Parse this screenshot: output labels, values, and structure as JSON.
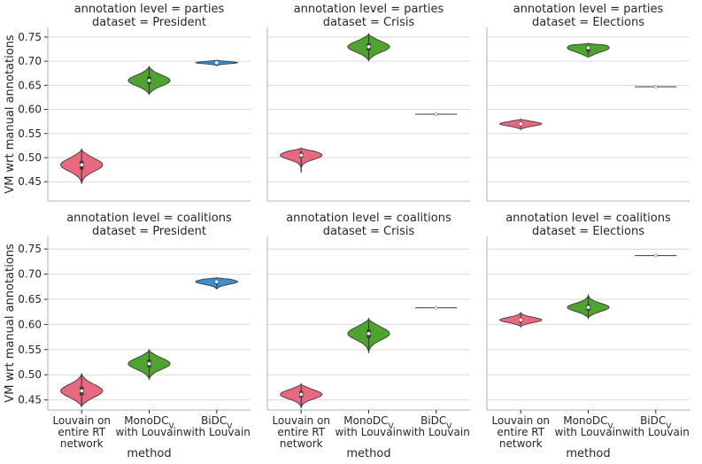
{
  "chart_data": {
    "type": "violin",
    "ylabel": "VM wrt manual annotations",
    "xlabel": "method",
    "categories": [
      [
        "Louvain on",
        "entire RT",
        "network"
      ],
      [
        "MonoDC",
        "with Louvain"
      ],
      [
        "BiDC",
        "with Louvain"
      ]
    ],
    "category_subscripts": [
      "",
      "V",
      "V"
    ],
    "colors": [
      "#e8697d",
      "#4ea42f",
      "#3b8fd1"
    ],
    "panels": [
      {
        "title_line1": "annotation level = parties",
        "title_line2": "dataset = President",
        "ylim": [
          0.41,
          0.77
        ],
        "yticks": [
          "0.45",
          "0.50",
          "0.55",
          "0.60",
          "0.65",
          "0.70",
          "0.75"
        ],
        "violins": [
          {
            "min": 0.445,
            "max": 0.518,
            "q1": 0.475,
            "median": 0.485,
            "q3": 0.493,
            "width": 0.62
          },
          {
            "min": 0.63,
            "max": 0.69,
            "q1": 0.653,
            "median": 0.66,
            "q3": 0.668,
            "width": 0.62
          },
          {
            "min": 0.69,
            "max": 0.702,
            "q1": 0.695,
            "median": 0.697,
            "q3": 0.698,
            "width": 0.62
          }
        ]
      },
      {
        "title_line1": "annotation level = parties",
        "title_line2": "dataset = Crisis",
        "ylim": [
          0.41,
          0.77
        ],
        "yticks": [
          "0.45",
          "0.50",
          "0.55",
          "0.60",
          "0.65",
          "0.70",
          "0.75"
        ],
        "violins": [
          {
            "min": 0.468,
            "max": 0.52,
            "q1": 0.5,
            "median": 0.505,
            "q3": 0.51,
            "width": 0.62
          },
          {
            "min": 0.7,
            "max": 0.757,
            "q1": 0.722,
            "median": 0.73,
            "q3": 0.737,
            "width": 0.62
          },
          {
            "min": 0.589,
            "max": 0.591,
            "q1": 0.5895,
            "median": 0.59,
            "q3": 0.5905,
            "width": 0.62
          }
        ]
      },
      {
        "title_line1": "annotation level = parties",
        "title_line2": "dataset = Elections",
        "ylim": [
          0.41,
          0.77
        ],
        "yticks": [
          "0.45",
          "0.50",
          "0.55",
          "0.60",
          "0.65",
          "0.70",
          "0.75"
        ],
        "violins": [
          {
            "min": 0.558,
            "max": 0.58,
            "q1": 0.567,
            "median": 0.57,
            "q3": 0.573,
            "width": 0.62
          },
          {
            "min": 0.708,
            "max": 0.737,
            "q1": 0.72,
            "median": 0.728,
            "q3": 0.732,
            "width": 0.62
          },
          {
            "min": 0.646,
            "max": 0.648,
            "q1": 0.6465,
            "median": 0.647,
            "q3": 0.6475,
            "width": 0.62
          }
        ]
      },
      {
        "title_line1": "annotation level = coalitions",
        "title_line2": "dataset = President",
        "ylim": [
          0.43,
          0.775
        ],
        "yticks": [
          "0.45",
          "0.50",
          "0.55",
          "0.60",
          "0.65",
          "0.70",
          "0.75"
        ],
        "violins": [
          {
            "min": 0.436,
            "max": 0.503,
            "q1": 0.459,
            "median": 0.468,
            "q3": 0.476,
            "width": 0.62
          },
          {
            "min": 0.49,
            "max": 0.55,
            "q1": 0.515,
            "median": 0.522,
            "q3": 0.53,
            "width": 0.62
          },
          {
            "min": 0.67,
            "max": 0.693,
            "q1": 0.681,
            "median": 0.685,
            "q3": 0.688,
            "width": 0.62
          }
        ]
      },
      {
        "title_line1": "annotation level = coalitions",
        "title_line2": "dataset = Crisis",
        "ylim": [
          0.43,
          0.775
        ],
        "yticks": [
          "0.45",
          "0.50",
          "0.55",
          "0.60",
          "0.65",
          "0.70",
          "0.75"
        ],
        "violins": [
          {
            "min": 0.433,
            "max": 0.482,
            "q1": 0.455,
            "median": 0.461,
            "q3": 0.467,
            "width": 0.62
          },
          {
            "min": 0.543,
            "max": 0.612,
            "q1": 0.573,
            "median": 0.582,
            "q3": 0.59,
            "width": 0.62
          },
          {
            "min": 0.632,
            "max": 0.634,
            "q1": 0.6325,
            "median": 0.633,
            "q3": 0.6335,
            "width": 0.62
          }
        ]
      },
      {
        "title_line1": "annotation level = coalitions",
        "title_line2": "dataset = Elections",
        "ylim": [
          0.43,
          0.775
        ],
        "yticks": [
          "0.45",
          "0.50",
          "0.55",
          "0.60",
          "0.65",
          "0.70",
          "0.75"
        ],
        "violins": [
          {
            "min": 0.595,
            "max": 0.624,
            "q1": 0.605,
            "median": 0.609,
            "q3": 0.612,
            "width": 0.62
          },
          {
            "min": 0.612,
            "max": 0.66,
            "q1": 0.628,
            "median": 0.634,
            "q3": 0.639,
            "width": 0.62
          },
          {
            "min": 0.736,
            "max": 0.738,
            "q1": 0.7365,
            "median": 0.737,
            "q3": 0.7375,
            "width": 0.62
          }
        ]
      }
    ]
  }
}
